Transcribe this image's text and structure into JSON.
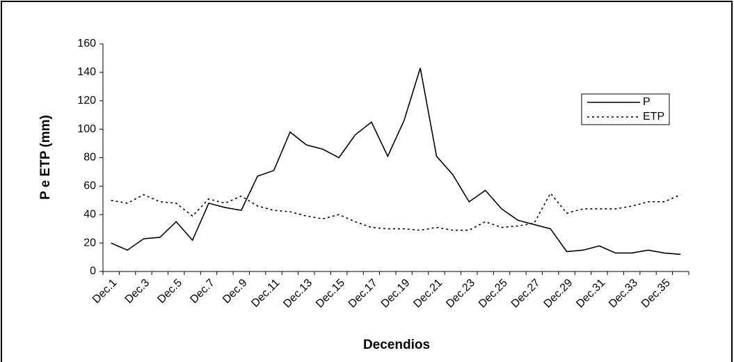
{
  "chart_data": {
    "type": "line",
    "x_label": "Decendios",
    "y_label": "P e ETP (mm)",
    "categories": [
      "Dec.1",
      null,
      "Dec.3",
      null,
      "Dec.5",
      null,
      "Dec.7",
      null,
      "Dec.9",
      null,
      "Dec.11",
      null,
      "Dec.13",
      null,
      "Dec.15",
      null,
      "Dec.17",
      null,
      "Dec.19",
      null,
      "Dec.21",
      null,
      "Dec.23",
      null,
      "Dec.25",
      null,
      "Dec.27",
      null,
      "Dec.29",
      null,
      "Dec.31",
      null,
      "Dec.33",
      null,
      "Dec.35",
      null
    ],
    "series": [
      {
        "name": "P",
        "color": "#000000",
        "dash": "solid",
        "values": [
          20,
          15,
          23,
          24,
          35,
          22,
          48,
          45,
          43,
          67,
          71,
          98,
          89,
          86,
          80,
          96,
          105,
          81,
          106,
          143,
          81,
          68,
          49,
          57,
          44,
          36,
          33,
          30,
          14,
          15,
          18,
          13,
          13,
          15,
          13,
          12
        ]
      },
      {
        "name": "ETP",
        "color": "#000000",
        "dash": "dotted",
        "values": [
          50,
          48,
          54,
          49,
          48,
          39,
          51,
          48,
          53,
          46,
          43,
          42,
          39,
          37,
          40,
          35,
          31,
          30,
          30,
          29,
          31,
          29,
          29,
          35,
          31,
          32,
          34,
          55,
          41,
          44,
          44,
          44,
          46,
          49,
          49,
          54
        ]
      }
    ],
    "ylim": [
      0,
      160
    ],
    "yticks": [
      0,
      20,
      40,
      60,
      80,
      100,
      120,
      140,
      160
    ],
    "grid": false,
    "legend": "upper right"
  }
}
